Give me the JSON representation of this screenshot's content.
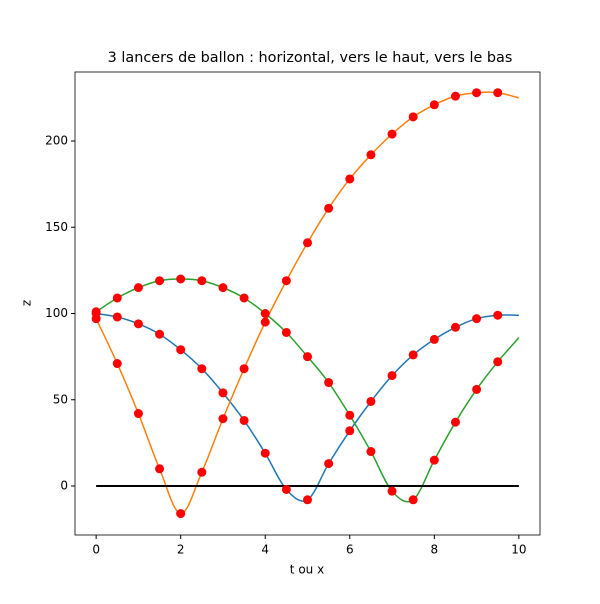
{
  "chart_data": {
    "type": "line",
    "title": "3 lancers de ballon : horizontal, vers le haut, vers le bas",
    "x_label": "t ou x",
    "y_label": "z",
    "xlim": [
      -0.5,
      10.5
    ],
    "ylim": [
      -28.4,
      240
    ],
    "xticks": [
      0,
      2,
      4,
      6,
      8,
      10
    ],
    "yticks": [
      0,
      50,
      100,
      150,
      200
    ],
    "series": [
      {
        "color": "#1f77b4",
        "x": [
          0,
          0.5,
          1,
          1.5,
          2,
          2.5,
          3,
          3.5,
          4,
          4.5,
          5,
          5.5,
          6,
          6.5,
          7,
          7.5,
          8,
          8.5,
          9,
          9.5,
          10
        ],
        "values": [
          100,
          98,
          94,
          88,
          79,
          68,
          54,
          38,
          19,
          -2,
          -8,
          13,
          32,
          49,
          64,
          76,
          85,
          92,
          97,
          99,
          99
        ]
      },
      {
        "color": "#ff7f0e",
        "x": [
          0,
          0.5,
          1,
          1.5,
          2,
          2.5,
          3,
          3.5,
          4,
          4.5,
          5,
          5.5,
          6,
          6.5,
          7,
          7.5,
          8,
          8.5,
          9,
          9.5,
          10
        ],
        "values": [
          97,
          71,
          42,
          10,
          -16,
          8,
          39,
          68,
          95,
          119,
          141,
          161,
          178,
          192,
          204,
          214,
          221,
          226,
          228,
          228,
          225
        ]
      },
      {
        "color": "#2ca02c",
        "x": [
          0,
          0.5,
          1,
          1.5,
          2,
          2.5,
          3,
          3.5,
          4,
          4.5,
          5,
          5.5,
          6,
          6.5,
          7,
          7.5,
          8,
          8.5,
          9,
          9.5,
          10
        ],
        "values": [
          101,
          109,
          115,
          119,
          120,
          119,
          115,
          109,
          100,
          89,
          75,
          60,
          41,
          20,
          -3,
          -8,
          15,
          37,
          56,
          72,
          86
        ]
      },
      {
        "color": "#000000",
        "x": [
          0,
          10
        ],
        "values": [
          0,
          0
        ]
      }
    ],
    "markers": {
      "color": "#ff0000",
      "x": [
        0,
        0.5,
        1,
        1.5,
        2,
        2.5,
        3,
        3.5,
        4,
        4.5,
        5,
        5.5,
        6,
        6.5,
        7,
        7.5,
        8,
        8.5,
        9,
        9.5
      ],
      "series": [
        [
          100,
          98,
          94,
          88,
          79,
          68,
          54,
          38,
          19,
          -2,
          -8,
          13,
          32,
          49,
          64,
          76,
          85,
          92,
          97,
          99
        ],
        [
          97,
          71,
          42,
          10,
          -16,
          8,
          39,
          68,
          95,
          119,
          141,
          161,
          178,
          192,
          204,
          214,
          221,
          226,
          228,
          228
        ],
        [
          101,
          109,
          115,
          119,
          120,
          119,
          115,
          109,
          100,
          89,
          75,
          60,
          41,
          20,
          -3,
          -8,
          15,
          37,
          56,
          72
        ]
      ]
    }
  }
}
